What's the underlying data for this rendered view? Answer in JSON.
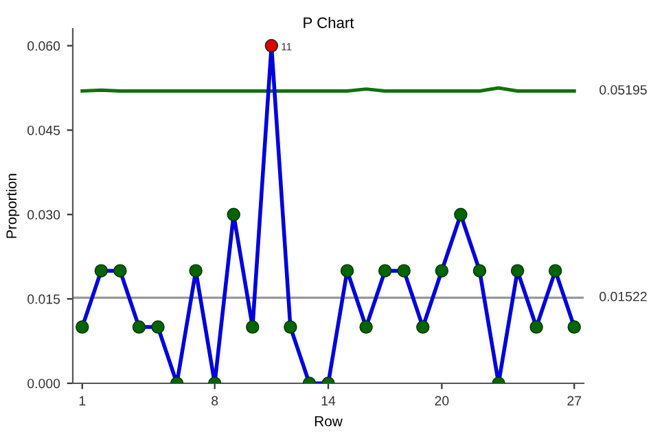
{
  "chart_data": {
    "type": "line",
    "title": "P Chart",
    "xlabel": "Row",
    "ylabel": "Proportion",
    "x": [
      1,
      2,
      3,
      4,
      5,
      6,
      7,
      8,
      9,
      10,
      11,
      12,
      13,
      14,
      15,
      16,
      17,
      18,
      19,
      20,
      21,
      22,
      23,
      24,
      25,
      26,
      27
    ],
    "series": [
      {
        "color": "#0000dd",
        "marker": "circle",
        "colors": [
          "#006400",
          "#006400",
          "#006400",
          "#006400",
          "#006400",
          "#006400",
          "#006400",
          "#006400",
          "#006400",
          "#006400",
          "#dd0000",
          "#006400",
          "#006400",
          "#006400",
          "#006400",
          "#006400",
          "#006400",
          "#006400",
          "#006400",
          "#006400",
          "#006400",
          "#006400",
          "#006400",
          "#006400",
          "#006400",
          "#006400",
          "#006400"
        ],
        "values": [
          0.01,
          0.02,
          0.02,
          0.01,
          0.01,
          0.0,
          0.02,
          0.0,
          0.03,
          0.01,
          0.06,
          0.01,
          0.0,
          0.0,
          0.02,
          0.01,
          0.02,
          0.02,
          0.01,
          0.02,
          0.03,
          0.02,
          0.0,
          0.02,
          0.01,
          0.02,
          0.01
        ]
      },
      {
        "color": "#107010",
        "marker": "none",
        "values": [
          0.05195,
          0.0521,
          0.05195,
          0.05195,
          0.05195,
          0.05195,
          0.05195,
          0.05195,
          0.05195,
          0.05195,
          0.05195,
          0.05195,
          0.05195,
          0.05195,
          0.05195,
          0.0523,
          0.05195,
          0.05195,
          0.05195,
          0.05195,
          0.05195,
          0.05195,
          0.0525,
          0.05195,
          0.05195,
          0.05195,
          0.05195
        ]
      }
    ],
    "ref_lines": [
      {
        "axis": "y",
        "value": 0.01522,
        "label": "0.01522",
        "color": "#999999"
      }
    ],
    "annotations": [
      {
        "text": "11",
        "x": 11,
        "y": 0.06
      },
      {
        "text": "0.05195",
        "x": 27,
        "y": 0.05195
      }
    ],
    "xlim": [
      0.5,
      27.5
    ],
    "xticks": [
      1,
      8,
      14,
      20,
      27
    ],
    "ylim": [
      0,
      0.063
    ],
    "yticks": [
      {
        "value": 0,
        "label": "0.000"
      },
      {
        "value": 0.015,
        "label": "0.015"
      },
      {
        "value": 0.03,
        "label": "0.030"
      },
      {
        "value": 0.045,
        "label": "0.045"
      },
      {
        "value": 0.06,
        "label": "0.060"
      }
    ],
    "grid": false,
    "legend": false
  }
}
